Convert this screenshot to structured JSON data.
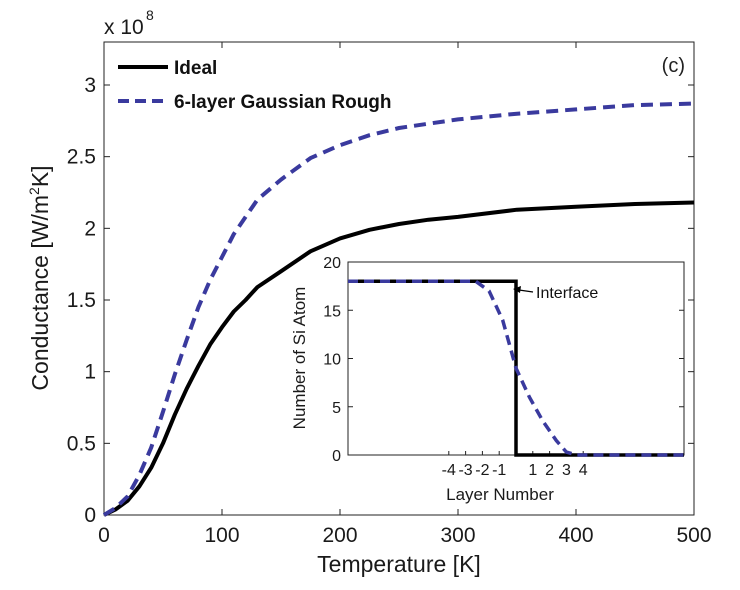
{
  "chart_data": [
    {
      "type": "line",
      "title": "",
      "panel_label": "(c)",
      "xlabel": "Temperature [K]",
      "ylabel": "Conductance [W/m²K]",
      "ylabel_parts": {
        "pre": "Conductance [W/m",
        "sup": "2",
        "post": "K]"
      },
      "y_multiplier": {
        "base": "x 10",
        "exponent": "8"
      },
      "xlim": [
        0,
        500
      ],
      "ylim": [
        0,
        3.3
      ],
      "xticks": [
        0,
        100,
        200,
        300,
        400,
        500
      ],
      "xtick_labels": [
        "0",
        "100",
        "200",
        "300",
        "400",
        "500"
      ],
      "yticks": [
        0,
        0.5,
        1,
        1.5,
        2,
        2.5,
        3
      ],
      "ytick_labels": [
        "0",
        "0.5",
        "1",
        "1.5",
        "2",
        "2.5",
        "3"
      ],
      "legend_placement": "top-left",
      "series": [
        {
          "name": "Ideal",
          "style": "solid",
          "color": "#000000",
          "x": [
            0,
            10,
            20,
            30,
            40,
            50,
            60,
            70,
            80,
            90,
            100,
            110,
            120,
            130,
            150,
            175,
            200,
            225,
            250,
            275,
            300,
            350,
            400,
            450,
            500
          ],
          "y": [
            0,
            0.04,
            0.1,
            0.2,
            0.33,
            0.5,
            0.7,
            0.88,
            1.04,
            1.19,
            1.31,
            1.42,
            1.5,
            1.59,
            1.7,
            1.84,
            1.93,
            1.99,
            2.03,
            2.06,
            2.08,
            2.13,
            2.15,
            2.17,
            2.18
          ]
        },
        {
          "name": "6-layer Gaussian Rough",
          "style": "dashed",
          "color": "#3a3a9e",
          "x": [
            0,
            10,
            20,
            30,
            40,
            50,
            60,
            70,
            80,
            90,
            100,
            110,
            120,
            130,
            150,
            175,
            200,
            225,
            250,
            275,
            300,
            350,
            400,
            450,
            500
          ],
          "y": [
            0,
            0.05,
            0.13,
            0.28,
            0.47,
            0.72,
            0.98,
            1.22,
            1.45,
            1.64,
            1.8,
            1.96,
            2.08,
            2.2,
            2.34,
            2.49,
            2.58,
            2.65,
            2.7,
            2.73,
            2.76,
            2.8,
            2.83,
            2.86,
            2.87
          ]
        }
      ]
    },
    {
      "type": "line",
      "title": "",
      "xlabel": "Layer Number",
      "ylabel": "Number of Si Atom",
      "xlim": [
        -10,
        10
      ],
      "ylim": [
        0,
        20
      ],
      "xticks": [
        -4,
        -3,
        -2,
        -1,
        1,
        2,
        3,
        4
      ],
      "xtick_labels": [
        "-4",
        "-3",
        "-2",
        "-1",
        "1",
        "2",
        "3",
        "4"
      ],
      "yticks": [
        0,
        5,
        10,
        15,
        20
      ],
      "ytick_labels": [
        "0",
        "5",
        "10",
        "15",
        "20"
      ],
      "annotation": "Interface",
      "series": [
        {
          "name": "Ideal",
          "style": "solid",
          "color": "#000000",
          "x": [
            -10,
            0,
            0,
            10
          ],
          "y": [
            18,
            18,
            0,
            0
          ]
        },
        {
          "name": "6-layer Gaussian Rough",
          "style": "dashed",
          "color": "#3a3a9e",
          "x": [
            -10,
            -2.4,
            -1.6,
            -0.8,
            0,
            0.8,
            1.6,
            2.4,
            3.0,
            3.6,
            4.4,
            10
          ],
          "y": [
            18,
            18,
            17,
            14,
            9,
            6,
            3.5,
            1.5,
            0.3,
            0,
            0,
            0
          ]
        }
      ]
    }
  ]
}
